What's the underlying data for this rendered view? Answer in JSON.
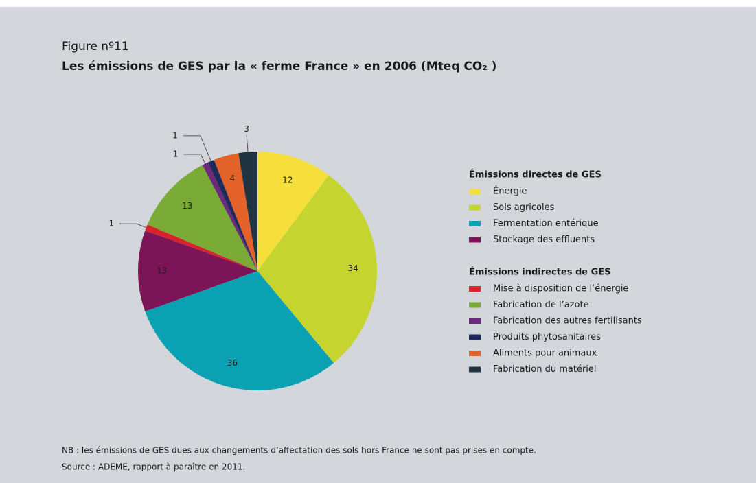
{
  "figure_label": "Figure nº11",
  "chart_data": {
    "type": "pie",
    "title": "Les émissions de GES par la « ferme France » en 2006 (Mteq CO₂ )",
    "groups": [
      {
        "name": "Émissions directes de GES",
        "categories": [
          "Énergie",
          "Sols agricoles",
          "Fermentation entérique",
          "Stockage des effluents"
        ],
        "values": [
          12,
          34,
          36,
          13
        ],
        "colors": [
          "#f6df3a",
          "#c6d42f",
          "#0aa2b3",
          "#7c1557"
        ]
      },
      {
        "name": "Émissions indirectes de GES",
        "categories": [
          "Mise à disposition de l’énergie",
          "Fabrication de l’azote",
          "Fabrication des autres fertilisants",
          "Produits phytosanitaires",
          "Aliments pour animaux",
          "Fabrication du matériel"
        ],
        "values": [
          1,
          13,
          1,
          1,
          4,
          3
        ],
        "colors": [
          "#d8222c",
          "#7aab36",
          "#6a2b7c",
          "#1d2a5a",
          "#e2622a",
          "#1f3340"
        ]
      }
    ]
  },
  "notes": [
    "NB : les émissions de GES dues aux changements d’affectation des sols hors France ne sont pas prises en compte.",
    "Source : ADEME, rapport à paraître en 2011."
  ]
}
